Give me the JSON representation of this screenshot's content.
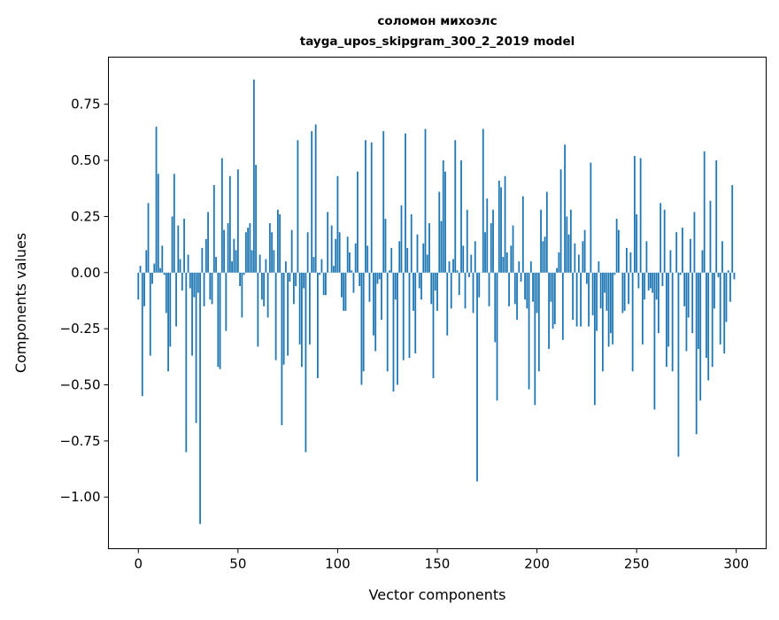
{
  "chart_data": {
    "type": "bar",
    "title": "соломон михоэлс",
    "subtitle": "tayga_upos_skipgram_300_2_2019 model",
    "xlabel": "Vector components",
    "ylabel": "Components values",
    "xlim": [
      -15,
      315
    ],
    "ylim": [
      -1.23,
      0.96
    ],
    "xticks": [
      0,
      50,
      100,
      150,
      200,
      250,
      300
    ],
    "yticks": [
      0.75,
      0.5,
      0.25,
      0.0,
      -0.25,
      -0.5,
      -0.75,
      -1.0
    ],
    "ytick_labels": [
      "0.75",
      "0.50",
      "0.25",
      "0.00",
      "−0.25",
      "−0.50",
      "−0.75",
      "−1.00"
    ],
    "color": "#1f77b4",
    "grid": false,
    "values": [
      -0.12,
      0.03,
      -0.55,
      -0.15,
      0.1,
      0.31,
      -0.37,
      -0.05,
      0.04,
      0.65,
      0.44,
      0.02,
      0.12,
      -0.01,
      -0.18,
      -0.44,
      -0.33,
      0.25,
      0.44,
      -0.24,
      0.21,
      0.06,
      -0.08,
      0.24,
      -0.8,
      0.08,
      -0.07,
      -0.37,
      -0.11,
      -0.67,
      -0.09,
      -1.12,
      0.11,
      -0.15,
      0.15,
      0.27,
      -0.12,
      -0.14,
      0.39,
      0.07,
      -0.42,
      -0.43,
      0.51,
      0.19,
      -0.26,
      0.22,
      0.43,
      0.05,
      0.15,
      0.1,
      0.46,
      -0.06,
      -0.2,
      -0.01,
      0.18,
      0.2,
      0.22,
      0.1,
      0.86,
      0.48,
      -0.33,
      0.08,
      -0.12,
      -0.15,
      0.06,
      -0.2,
      0.22,
      0.18,
      0.1,
      -0.39,
      0.28,
      0.26,
      -0.68,
      -0.41,
      0.05,
      -0.37,
      -0.04,
      0.19,
      -0.14,
      -0.06,
      0.59,
      -0.32,
      -0.42,
      -0.07,
      -0.8,
      0.18,
      -0.32,
      0.63,
      0.07,
      0.66,
      -0.47,
      -0.01,
      0.06,
      -0.1,
      -0.1,
      0.27,
      0.0,
      0.21,
      0.03,
      0.15,
      0.43,
      0.18,
      -0.11,
      -0.17,
      -0.17,
      0.16,
      0.09,
      0.01,
      -0.09,
      0.13,
      0.45,
      -0.06,
      -0.5,
      -0.44,
      0.59,
      0.12,
      -0.13,
      0.58,
      -0.28,
      -0.35,
      -0.05,
      -0.03,
      -0.21,
      0.63,
      0.24,
      -0.44,
      0.01,
      0.11,
      -0.53,
      -0.12,
      -0.5,
      0.14,
      0.3,
      -0.39,
      0.62,
      0.11,
      -0.38,
      0.26,
      -0.17,
      -0.36,
      0.17,
      -0.07,
      -0.12,
      0.13,
      0.64,
      0.08,
      0.22,
      -0.14,
      -0.47,
      -0.08,
      -0.17,
      0.36,
      0.23,
      0.5,
      0.45,
      -0.28,
      0.05,
      -0.16,
      0.06,
      0.59,
      0.01,
      -0.1,
      0.5,
      0.12,
      -0.16,
      0.28,
      -0.02,
      0.08,
      -0.18,
      0.14,
      -0.93,
      -0.11,
      0.0,
      0.64,
      0.18,
      0.33,
      -0.15,
      0.22,
      0.28,
      -0.31,
      -0.57,
      0.41,
      0.38,
      0.07,
      0.43,
      0.09,
      -0.15,
      0.12,
      0.21,
      -0.14,
      -0.21,
      0.05,
      -0.04,
      0.34,
      -0.12,
      -0.16,
      -0.52,
      0.05,
      -0.13,
      -0.59,
      -0.18,
      -0.44,
      0.28,
      0.14,
      0.16,
      0.36,
      -0.34,
      -0.13,
      -0.25,
      -0.23,
      0.02,
      0.09,
      0.46,
      -0.3,
      0.57,
      0.25,
      0.17,
      0.28,
      -0.21,
      0.13,
      -0.24,
      0.08,
      -0.24,
      0.14,
      0.19,
      -0.05,
      -0.24,
      0.49,
      -0.19,
      -0.59,
      -0.26,
      0.05,
      -0.16,
      -0.44,
      -0.09,
      -0.17,
      -0.33,
      -0.27,
      -0.32,
      -0.01,
      0.24,
      0.19,
      0.0,
      -0.18,
      -0.17,
      0.11,
      -0.14,
      0.09,
      -0.44,
      0.52,
      0.26,
      -0.07,
      0.51,
      -0.32,
      -0.12,
      0.14,
      -0.08,
      -0.07,
      -0.09,
      -0.61,
      -0.12,
      -0.27,
      0.31,
      -0.06,
      0.28,
      -0.42,
      -0.33,
      0.1,
      -0.44,
      0.0,
      0.18,
      -0.82,
      -0.01,
      0.2,
      -0.15,
      -0.35,
      -0.2,
      0.15,
      -0.27,
      0.27,
      -0.72,
      -0.34,
      -0.57,
      0.1,
      0.54,
      -0.38,
      -0.48,
      0.32,
      -0.42,
      -0.16,
      0.5,
      -0.02,
      -0.32,
      0.14,
      -0.36,
      -0.22,
      0.01,
      -0.13,
      0.39,
      -0.03
    ]
  }
}
